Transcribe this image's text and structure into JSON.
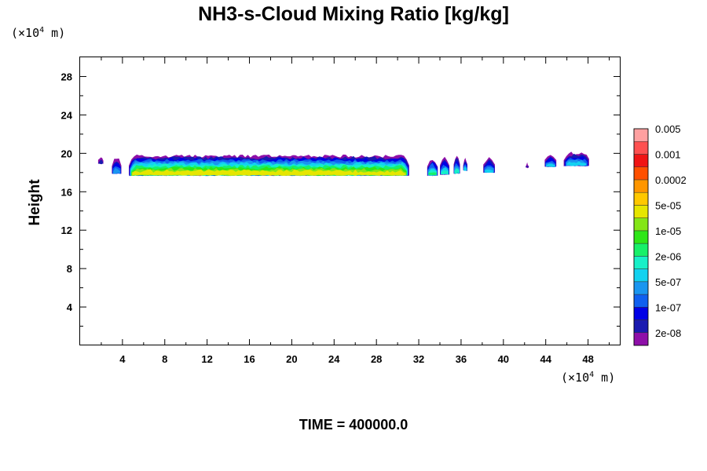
{
  "chart_data": {
    "type": "contour",
    "title": "NH3-s-Cloud Mixing Ratio [kg/kg]",
    "ylabel": "Height",
    "xunit": "(×10⁴ m)",
    "yunit": "(×10⁴ m)",
    "footer": "TIME = 400000.0",
    "xlim": [
      0,
      51
    ],
    "ylim": [
      0,
      30
    ],
    "xticks": [
      "4",
      "8",
      "12",
      "16",
      "20",
      "24",
      "28",
      "32",
      "36",
      "40",
      "44",
      "48"
    ],
    "yticks": [
      "4",
      "8",
      "12",
      "16",
      "20",
      "24",
      "28"
    ],
    "colorbar": {
      "colors": [
        "#8e0fa8",
        "#1a1ab0",
        "#0000e6",
        "#1060f0",
        "#1a96f0",
        "#12d2f0",
        "#17f0c8",
        "#17f069",
        "#2ee617",
        "#84e617",
        "#e6e600",
        "#ffc800",
        "#ff9600",
        "#ff5000",
        "#f01414",
        "#ff5050",
        "#ffa0a0"
      ],
      "labels": [
        "2e-08",
        "1e-07",
        "5e-07",
        "2e-06",
        "1e-05",
        "5e-05",
        "0.0002",
        "0.001",
        "0.005"
      ],
      "label_levels": [
        1,
        3,
        5,
        7,
        9,
        11,
        13,
        15,
        17
      ]
    },
    "cloud_segments": [
      {
        "x0": 1.7,
        "x1": 2.2,
        "bottom": 18.9,
        "top": 19.6,
        "peak_level": 2
      },
      {
        "x0": 3.0,
        "x1": 3.9,
        "bottom": 17.9,
        "top": 19.6,
        "peak_level": 5
      },
      {
        "x0": 4.6,
        "x1": 31.1,
        "bottom": 17.7,
        "top": 19.7,
        "peak_level": 11
      },
      {
        "x0": 32.8,
        "x1": 33.8,
        "bottom": 17.7,
        "top": 19.4,
        "peak_level": 8
      },
      {
        "x0": 34.0,
        "x1": 34.9,
        "bottom": 17.8,
        "top": 19.6,
        "peak_level": 7
      },
      {
        "x0": 35.3,
        "x1": 35.9,
        "bottom": 17.9,
        "top": 19.7,
        "peak_level": 7
      },
      {
        "x0": 36.2,
        "x1": 36.6,
        "bottom": 18.2,
        "top": 19.4,
        "peak_level": 6
      },
      {
        "x0": 38.1,
        "x1": 39.2,
        "bottom": 18.0,
        "top": 19.5,
        "peak_level": 6
      },
      {
        "x0": 42.1,
        "x1": 42.4,
        "bottom": 18.5,
        "top": 18.9,
        "peak_level": 2
      },
      {
        "x0": 43.9,
        "x1": 45.0,
        "bottom": 18.6,
        "top": 19.9,
        "peak_level": 6
      },
      {
        "x0": 45.7,
        "x1": 48.1,
        "bottom": 18.7,
        "top": 20.0,
        "peak_level": 6
      }
    ]
  }
}
